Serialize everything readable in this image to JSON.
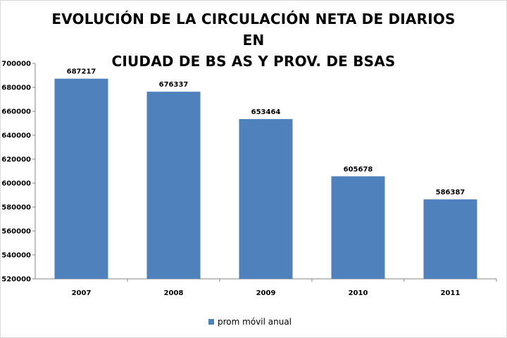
{
  "chart_data": {
    "type": "bar",
    "title": [
      "EVOLUCIÓN DE LA CIRCULACIÓN NETA DE DIARIOS EN",
      "CIUDAD DE BS AS Y PROV. DE BSAS"
    ],
    "xlabel": "",
    "ylabel": "",
    "categories": [
      "2007",
      "2008",
      "2009",
      "2010",
      "2011"
    ],
    "series": [
      {
        "name": "prom móvil anual",
        "values": [
          687217,
          676337,
          653464,
          605678,
          586387
        ],
        "color": "#4f81bd"
      }
    ],
    "ylim": [
      520000,
      700000
    ],
    "yticks": [
      700000,
      680000,
      660000,
      640000,
      620000,
      600000,
      580000,
      560000,
      540000,
      520000
    ],
    "ytick_labels": [
      "700000",
      "680000",
      "660000",
      "640000",
      "620000",
      "600000",
      "580000",
      "560000",
      "540000",
      "520000"
    ],
    "data_labels": [
      "687217",
      "676337",
      "653464",
      "605678",
      "586387"
    ],
    "grid": false,
    "legend_position": "bottom"
  }
}
